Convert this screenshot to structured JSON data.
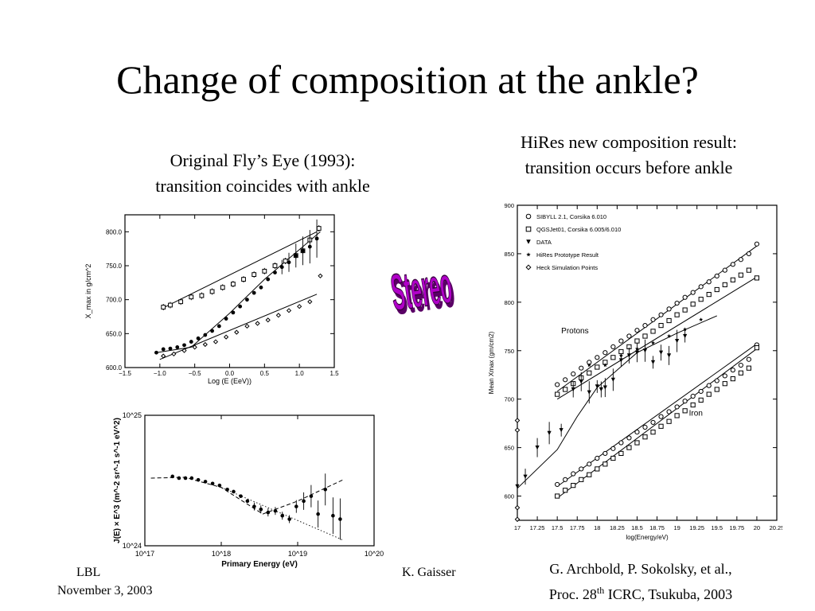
{
  "slide": {
    "title": "Change of composition at the ankle?",
    "caption_left_line1": "Original Fly’s Eye (1993):",
    "caption_left_line2": "transition coincides with ankle",
    "caption_right_line1": "HiRes new composition result:",
    "caption_right_line2": "transition occurs before ankle",
    "stereo_label": "Stereo",
    "reference_line1": "G. Archbold, P. Sokolsky, et al.,",
    "reference_line2_pre": "Proc. 28",
    "reference_line2_sup": "th",
    "reference_line2_post": " ICRC, Tsukuba, 2003",
    "footer_left_line1": "LBL",
    "footer_left_line2": "November 3, 2003",
    "footer_right": "K. Gaisser",
    "colors": {
      "stereo_fill": "#b000c8",
      "stereo_shadow": "#5a0066"
    }
  },
  "chart_data": [
    {
      "type": "scatter",
      "xlabel": "Log (E (EeV))",
      "ylabel": "X_max in g/cm^2",
      "xlim": [
        -1.5,
        1.5
      ],
      "ylim": [
        600,
        825
      ],
      "xticks": [
        "−1.5",
        "−1.0",
        "−0.5",
        "0.0",
        "0.5",
        "1.0",
        "1.5"
      ],
      "yticks": [
        "600.0",
        "650.0",
        "700.0",
        "750.0",
        "800.0"
      ],
      "series": [
        {
          "marker": "open-square",
          "x": [
            -0.95,
            -0.85,
            -0.7,
            -0.55,
            -0.4,
            -0.25,
            -0.1,
            0.05,
            0.2,
            0.35,
            0.5,
            0.65,
            0.8,
            0.95,
            1.05,
            1.15,
            1.28
          ],
          "y": [
            689,
            692,
            697,
            704,
            706,
            712,
            718,
            723,
            730,
            737,
            742,
            750,
            757,
            765,
            772,
            788,
            805
          ]
        },
        {
          "marker": "filled-circle",
          "x": [
            -1.05,
            -0.95,
            -0.85,
            -0.75,
            -0.65,
            -0.55,
            -0.45,
            -0.35,
            -0.25,
            -0.15,
            -0.05,
            0.05,
            0.15,
            0.25,
            0.35,
            0.45,
            0.55,
            0.65,
            0.75,
            0.85,
            0.95,
            1.05,
            1.15,
            1.25
          ],
          "y": [
            622,
            627,
            628,
            630,
            633,
            638,
            643,
            648,
            654,
            661,
            672,
            681,
            690,
            700,
            710,
            718,
            730,
            740,
            748,
            755,
            765,
            772,
            778,
            790
          ]
        },
        {
          "marker": "open-diamond",
          "x": [
            -0.95,
            -0.8,
            -0.65,
            -0.5,
            -0.35,
            -0.2,
            -0.05,
            0.1,
            0.25,
            0.4,
            0.55,
            0.7,
            0.85,
            1.0,
            1.15,
            1.3
          ],
          "y": [
            617,
            620,
            625,
            630,
            634,
            638,
            645,
            652,
            661,
            665,
            670,
            677,
            684,
            690,
            697,
            735
          ]
        }
      ],
      "lines": [
        {
          "x": [
            -0.95,
            1.25
          ],
          "y": [
            688,
            800
          ]
        },
        {
          "x": [
            -1.05,
            -0.55,
            0.0,
            0.5,
            1.3
          ],
          "y": [
            622,
            630,
            680,
            730,
            800
          ]
        },
        {
          "x": [
            -1.0,
            1.25
          ],
          "y": [
            612,
            708
          ]
        }
      ]
    },
    {
      "type": "scatter",
      "xlabel": "Primary Energy (eV)",
      "ylabel": "J(E) × E^3 (m^-2 sr^-1 s^-1 eV^2)",
      "xscale": "log",
      "yscale": "log",
      "xlim": [
        1e+17,
        1e+20
      ],
      "ylim": [
        1e+24,
        1e+25
      ],
      "xticks": [
        "10^17",
        "10^18",
        "10^19",
        "10^20"
      ],
      "yticks": [
        "10^24",
        "10^25"
      ],
      "series": [
        {
          "marker": "filled-circle",
          "x": [
            2.3e+17,
            2.8e+17,
            3.4e+17,
            4.1e+17,
            5e+17,
            6.2e+17,
            7.7e+17,
            9.5e+17,
            1.2e+18,
            1.45e+18,
            1.8e+18,
            2.2e+18,
            2.7e+18,
            3.3e+18,
            4.1e+18,
            5.1e+18,
            6.3e+18,
            7.8e+18,
            9.6e+18,
            1.2e+19,
            1.5e+19,
            1.85e+19,
            2.3e+19,
            2.9e+19,
            3.6e+19
          ],
          "y": [
            3.4e+24,
            3.3e+24,
            3.3e+24,
            3.3e+24,
            3.2e+24,
            3.1e+24,
            3e+24,
            2.9e+24,
            2.7e+24,
            2.6e+24,
            2.4e+24,
            2.2e+24,
            2e+24,
            1.9e+24,
            1.8e+24,
            1.85e+24,
            1.7e+24,
            1.6e+24,
            2e+24,
            2.2e+24,
            2.4e+24,
            1.75e+24,
            2.7e+24,
            1.7e+24,
            1.6e+24
          ]
        }
      ],
      "lines": [
        {
          "style": "dashed",
          "x": [
            1.2e+17,
            3.3e+17,
            1e+18,
            3.5e+18,
            1e+19,
            3.9e+19
          ],
          "y": [
            3.3e+24,
            3.35e+24,
            2.8e+24,
            1.75e+24,
            2.2e+24,
            3.2e+24
          ]
        },
        {
          "style": "dotted",
          "x": [
            1e+18,
            4e+19
          ],
          "y": [
            2.8e+24,
            1.1e+24
          ]
        }
      ]
    },
    {
      "type": "scatter",
      "xlabel": "log(Energy/eV)",
      "ylabel": "Mean Xmax (gm/cm2)",
      "xlim": [
        17,
        20.25
      ],
      "ylim": [
        575,
        900
      ],
      "xticks": [
        "17",
        "17.25",
        "17.5",
        "17.75",
        "18",
        "18.25",
        "18.5",
        "18.75",
        "19",
        "19.25",
        "19.5",
        "19.75",
        "20",
        "20.25"
      ],
      "yticks": [
        "600",
        "650",
        "700",
        "750",
        "800",
        "850",
        "900"
      ],
      "legend": [
        "SIBYLL 2.1, Corsika 6.010",
        "QGSJet01, Corsika 6.005/6.010",
        "DATA",
        "HiRes Prototype Result",
        "Heck Simulation Points"
      ],
      "annotations": [
        "Protons",
        "Iron"
      ],
      "series": [
        {
          "name": "SIBYLL 2.1, Corsika 6.010",
          "marker": "open-circle",
          "x": [
            17.5,
            17.6,
            17.7,
            17.8,
            17.9,
            18.0,
            18.1,
            18.2,
            18.3,
            18.4,
            18.5,
            18.6,
            18.7,
            18.8,
            18.9,
            19.0,
            19.1,
            19.2,
            19.3,
            19.4,
            19.5,
            19.6,
            19.7,
            19.8,
            19.9,
            20.0
          ],
          "y": [
            715,
            720,
            726,
            732,
            738,
            743,
            748,
            754,
            760,
            765,
            771,
            776,
            782,
            787,
            793,
            799,
            805,
            810,
            816,
            821,
            827,
            833,
            839,
            844,
            850,
            860
          ]
        },
        {
          "name": "QGSJet01, Corsika 6.005/6.010",
          "marker": "open-square",
          "x": [
            17.5,
            17.6,
            17.7,
            17.8,
            17.9,
            18.0,
            18.1,
            18.2,
            18.3,
            18.4,
            18.5,
            18.6,
            18.7,
            18.8,
            18.9,
            19.0,
            19.1,
            19.2,
            19.3,
            19.4,
            19.5,
            19.6,
            19.7,
            19.8,
            19.9,
            20.0
          ],
          "y": [
            705,
            710,
            716,
            722,
            727,
            733,
            738,
            743,
            749,
            754,
            760,
            765,
            770,
            776,
            781,
            787,
            792,
            798,
            803,
            808,
            813,
            818,
            823,
            828,
            833,
            825
          ]
        },
        {
          "name": "SIBYLL 2.1, Corsika 6.010",
          "marker": "open-circle",
          "x": [
            17.5,
            17.6,
            17.7,
            17.8,
            17.9,
            18.0,
            18.1,
            18.2,
            18.3,
            18.4,
            18.5,
            18.6,
            18.7,
            18.8,
            18.9,
            19.0,
            19.1,
            19.2,
            19.3,
            19.4,
            19.5,
            19.6,
            19.7,
            19.8,
            19.9,
            20.0
          ],
          "y": [
            612,
            617,
            623,
            628,
            633,
            639,
            644,
            649,
            655,
            660,
            666,
            671,
            676,
            682,
            687,
            692,
            698,
            703,
            708,
            714,
            719,
            724,
            730,
            735,
            741,
            756
          ]
        },
        {
          "name": "QGSJet01, Corsika 6.005/6.010",
          "marker": "open-square",
          "x": [
            17.5,
            17.6,
            17.7,
            17.8,
            17.9,
            18.0,
            18.1,
            18.2,
            18.3,
            18.4,
            18.5,
            18.6,
            18.7,
            18.8,
            18.9,
            19.0,
            19.1,
            19.2,
            19.3,
            19.4,
            19.5,
            19.6,
            19.7,
            19.8,
            19.9,
            20.0
          ],
          "y": [
            600,
            606,
            611,
            617,
            622,
            628,
            633,
            639,
            644,
            650,
            655,
            661,
            666,
            672,
            677,
            683,
            688,
            694,
            699,
            705,
            710,
            716,
            721,
            727,
            732,
            753
          ]
        },
        {
          "name": "DATA",
          "marker": "filled-triangle-down",
          "x": [
            17.0,
            17.1,
            17.25,
            17.4,
            17.55,
            17.7,
            17.8,
            17.9,
            18.0,
            18.05,
            18.1,
            18.2,
            18.3,
            18.4,
            18.5,
            18.6,
            18.7,
            18.8,
            18.9,
            19.0,
            19.1
          ],
          "y": [
            610,
            620,
            650,
            665,
            668,
            710,
            718,
            707,
            713,
            710,
            712,
            720,
            740,
            745,
            748,
            750,
            738,
            748,
            745,
            760,
            765
          ]
        },
        {
          "name": "HiRes Prototype Result",
          "marker": "filled-star",
          "x": [
            17.9,
            18.1,
            18.3,
            18.5,
            18.7,
            18.9,
            19.1,
            19.3
          ],
          "y": [
            735,
            735,
            745,
            752,
            758,
            765,
            772,
            782
          ]
        },
        {
          "name": "Heck Simulation Points",
          "marker": "open-diamond",
          "x": [
            17.0,
            17.0,
            17.0,
            17.0
          ],
          "y": [
            678,
            668,
            588,
            576
          ]
        }
      ],
      "lines": [
        {
          "x": [
            17.0,
            17.5,
            17.75,
            18.0,
            18.5,
            19.0,
            19.5
          ],
          "y": [
            608,
            648,
            682,
            712,
            748,
            768,
            786
          ]
        },
        {
          "x": [
            17.5,
            20.0
          ],
          "y": [
            708,
            858
          ]
        },
        {
          "x": [
            17.5,
            20.0
          ],
          "y": [
            700,
            826
          ]
        },
        {
          "x": [
            17.5,
            20.0
          ],
          "y": [
            610,
            757
          ]
        },
        {
          "x": [
            17.5,
            20.0
          ],
          "y": [
            598,
            752
          ]
        }
      ]
    }
  ]
}
